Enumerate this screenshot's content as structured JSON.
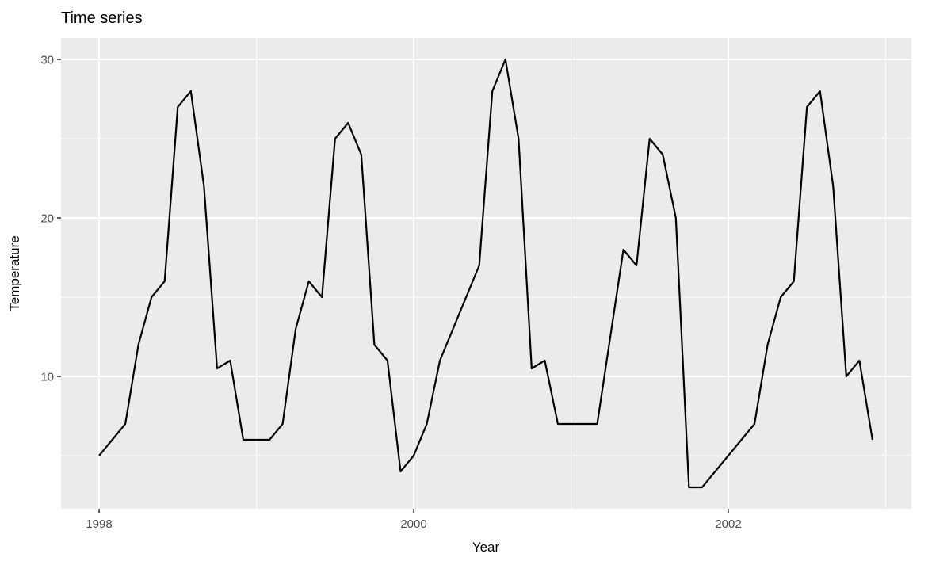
{
  "title": "Time series",
  "x_axis": {
    "label": "Year",
    "ticks": [
      "1998",
      "2000",
      "2002"
    ]
  },
  "y_axis": {
    "label": "Temperature",
    "ticks": [
      "10",
      "20",
      "30"
    ]
  },
  "chart_data": {
    "type": "line",
    "title": "Time series",
    "xlabel": "Year",
    "ylabel": "Temperature",
    "frequency": "monthly",
    "x_start_year": 1998,
    "x_end": "2002-12",
    "values": [
      5,
      6,
      7,
      12,
      15,
      16,
      27,
      28,
      22,
      10.5,
      11,
      6,
      6,
      6,
      7,
      13,
      16,
      15,
      25,
      26,
      24,
      12,
      11,
      4,
      5,
      7,
      11,
      13,
      15,
      17,
      28,
      30,
      25,
      10.5,
      11,
      7,
      7,
      7,
      7,
      12.5,
      18,
      17,
      25,
      24,
      20,
      3,
      3,
      4,
      5,
      6,
      7,
      12,
      15,
      16,
      27,
      28,
      22,
      10,
      11,
      6
    ],
    "xlim": [
      1997.758,
      2003.164
    ],
    "ylim": [
      1.65,
      31.35
    ],
    "x_major_ticks": [
      1998,
      2000,
      2002
    ],
    "x_minor_ticks": [
      1999,
      2001,
      2003
    ],
    "y_major_ticks": [
      10,
      20,
      30
    ],
    "y_minor_ticks": [
      5,
      15,
      25
    ],
    "grid": true,
    "legend": "none",
    "panel_bg": "#EBEBEB",
    "grid_color": "#FFFFFF",
    "line_color": "#000000",
    "tick_mark_color": "#333333",
    "tick_label_color": "#4D4D4D",
    "text_color": "#000000",
    "outer_bg": "#FFFFFF"
  }
}
